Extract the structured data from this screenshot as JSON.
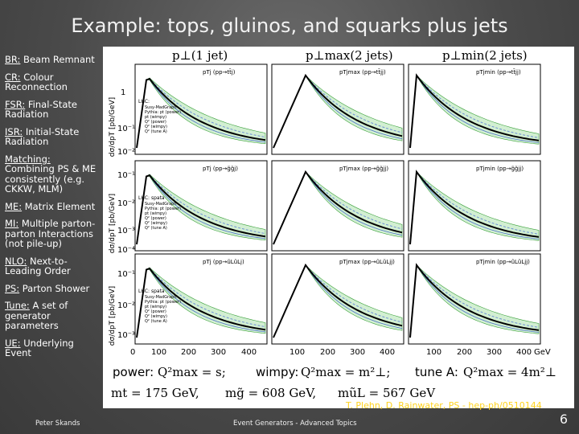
{
  "slide": {
    "title": "Example: tops, gluinos, and squarks plus jets",
    "credit": "T. Plehn, D. Rainwater, PS - hep-ph/0510144",
    "footer_left": "Peter Skands",
    "footer_center": "Event Generators - Advanced Topics",
    "page_number": "6"
  },
  "glossary": [
    {
      "abbr": "BR:",
      "text": " Beam Remnant"
    },
    {
      "abbr": "CR:",
      "text": " Colour Reconnection"
    },
    {
      "abbr": "FSR:",
      "text": " Final-State Radiation"
    },
    {
      "abbr": "ISR:",
      "text": " Initial-State Radiation"
    },
    {
      "abbr": "Matching:",
      "text": " Combining PS & ME consistently (e.g. CKKW, MLM)"
    },
    {
      "abbr": "ME:",
      "text": " Matrix Element"
    },
    {
      "abbr": "MI:",
      "text": " Multiple parton-parton Interactions (not pile-up)"
    },
    {
      "abbr": "NLO:",
      "text": " Next-to-Leading Order"
    },
    {
      "abbr": "PS:",
      "text": " Parton Shower"
    },
    {
      "abbr": "Tune:",
      "text": " A set of generator parameters"
    },
    {
      "abbr": "UE:",
      "text": " Underlying Event"
    }
  ],
  "figure": {
    "col_headers": [
      "p⊥(1 jet)",
      "p⊥max(2 jets)",
      "p⊥min(2 jets)"
    ],
    "y_axis_labels": [
      "dσ/dpT [pb/GeV]",
      "dσ/dpT [pb/GeV]",
      "dσ/dpT [pb/GeV]"
    ],
    "row_processes": [
      [
        "pTj (pp→tt̄j)",
        "pTjmax (pp→tt̄jj)",
        "pTjmin (pp→tt̄jj)"
      ],
      [
        "pTj (pp→g̃g̃j)",
        "pTjmax (pp→g̃g̃jj)",
        "pTjmin (pp→g̃g̃jj)"
      ],
      [
        "pTj (pp→ũLũLj)",
        "pTjmax (pp→ũLũLjj)",
        "pTjmin (pp→ũLũLjj)"
      ]
    ],
    "legend_items": [
      "Susy-MadGraph",
      "Pythia: pt (power)",
      "pt (wimpy)",
      "Q² (power)",
      "Q² (wimpy)",
      "Q² (tune A)"
    ],
    "legend_header": [
      "LHC:",
      "LHC: spata",
      "LHC: spata"
    ],
    "x_ticks": [
      "100",
      "200",
      "300",
      "400",
      "100",
      "200",
      "300",
      "400",
      "100",
      "200",
      "300",
      "400"
    ],
    "x_unit": "GeV",
    "x_first_zero": "0",
    "y_ticks_row1": [
      "1",
      "10⁻¹",
      "10⁻²"
    ],
    "y_ticks_row2": [
      "10⁻¹",
      "10⁻²",
      "10⁻³",
      "10⁻⁴"
    ],
    "y_ticks_row3": [
      "10⁻¹",
      "10⁻²",
      "10⁻³"
    ],
    "bottom_line1": {
      "power": "power:",
      "power_eq": "Q²max = s;",
      "wimpy": "wimpy:",
      "wimpy_eq": "Q²max = m²⊥;",
      "tune": "tune A:",
      "tune_eq": "Q²max = 4m²⊥"
    },
    "bottom_line2": {
      "mt": "mt = 175 GeV,",
      "mg": "mg̃ = 608 GeV,",
      "mu": "mũL = 567 GeV"
    }
  },
  "colors": {
    "background": "#4a4a4a",
    "credit": "#ffd21e",
    "band_green": "#7fd07f",
    "band_blue": "#6d8fd6"
  }
}
